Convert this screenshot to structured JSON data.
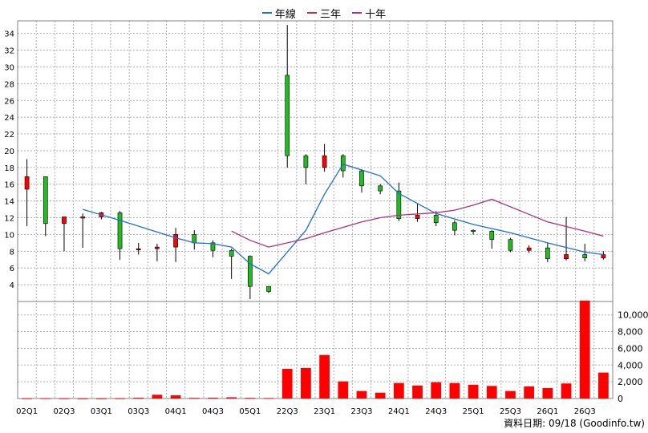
{
  "legend": [
    {
      "label": "年線",
      "color": "#1e6fd9"
    },
    {
      "label": "三年",
      "color": "#d12a2a"
    },
    {
      "label": "十年",
      "color": "#b0307a"
    }
  ],
  "footer": "資料日期: 09/18 (Goodinfo.tw)",
  "colors": {
    "up_body": "#ff0000",
    "down_body": "#22bb22",
    "wick": "#000000",
    "volume": "#ff0000",
    "grid": "#b0b0b0"
  },
  "chart_data": {
    "type": "candlestick+volume",
    "x_tick_labels": [
      "02Q1",
      "02Q3",
      "03Q1",
      "03Q3",
      "04Q1",
      "04Q3",
      "05Q1",
      "22Q3",
      "23Q1",
      "23Q3",
      "24Q1",
      "24Q3",
      "25Q1",
      "25Q3",
      "26Q1",
      "26Q3"
    ],
    "price_ylim": [
      2,
      35.5
    ],
    "price_ticks": [
      4,
      6,
      8,
      10,
      12,
      14,
      16,
      18,
      20,
      22,
      24,
      26,
      28,
      30,
      32,
      34
    ],
    "volume_ylim": [
      0,
      11600
    ],
    "volume_ticks": [
      "0",
      "2,000",
      "4,000",
      "6,000",
      "8,000",
      "10,000"
    ],
    "volume_tick_values": [
      0,
      2000,
      4000,
      6000,
      8000,
      10000
    ],
    "candles": [
      {
        "o": 15.4,
        "c": 16.9,
        "h": 19.0,
        "l": 11.0,
        "v": 30
      },
      {
        "o": 16.9,
        "c": 11.3,
        "h": 16.9,
        "l": 9.8,
        "v": 40
      },
      {
        "o": 11.3,
        "c": 12.1,
        "h": 12.1,
        "l": 8.0,
        "v": 30
      },
      {
        "o": 12.1,
        "c": 12.1,
        "h": 12.5,
        "l": 8.4,
        "v": 20
      },
      {
        "o": 12.1,
        "c": 12.6,
        "h": 12.7,
        "l": 11.8,
        "v": 20
      },
      {
        "o": 12.6,
        "c": 8.3,
        "h": 12.8,
        "l": 7.0,
        "v": 30
      },
      {
        "o": 8.3,
        "c": 8.3,
        "h": 9.0,
        "l": 7.6,
        "v": 100
      },
      {
        "o": 8.3,
        "c": 8.5,
        "h": 8.9,
        "l": 6.8,
        "v": 450
      },
      {
        "o": 8.5,
        "c": 10.0,
        "h": 10.8,
        "l": 6.7,
        "v": 380
      },
      {
        "o": 10.0,
        "c": 9.0,
        "h": 10.5,
        "l": 8.2,
        "v": 80
      },
      {
        "o": 9.0,
        "c": 8.1,
        "h": 9.3,
        "l": 7.3,
        "v": 100
      },
      {
        "o": 8.1,
        "c": 7.4,
        "h": 8.3,
        "l": 4.7,
        "v": 150
      },
      {
        "o": 7.4,
        "c": 3.8,
        "h": 7.5,
        "l": 2.3,
        "v": 80
      },
      {
        "o": 3.8,
        "c": 3.2,
        "h": 3.8,
        "l": 3.0,
        "v": 60
      },
      {
        "o": 29.0,
        "c": 19.4,
        "h": 35.0,
        "l": 18.0,
        "v": 3550
      },
      {
        "o": 19.4,
        "c": 18.0,
        "h": 19.6,
        "l": 16.0,
        "v": 3650
      },
      {
        "o": 18.0,
        "c": 19.4,
        "h": 20.8,
        "l": 17.5,
        "v": 5200
      },
      {
        "o": 19.4,
        "c": 17.6,
        "h": 19.6,
        "l": 16.8,
        "v": 2050
      },
      {
        "o": 17.6,
        "c": 15.8,
        "h": 17.8,
        "l": 15.0,
        "v": 900
      },
      {
        "o": 15.8,
        "c": 15.2,
        "h": 16.0,
        "l": 14.8,
        "v": 700
      },
      {
        "o": 15.2,
        "c": 11.9,
        "h": 16.2,
        "l": 11.6,
        "v": 1850
      },
      {
        "o": 11.9,
        "c": 12.3,
        "h": 13.7,
        "l": 11.5,
        "v": 1550
      },
      {
        "o": 12.3,
        "c": 11.4,
        "h": 12.8,
        "l": 11.0,
        "v": 1950
      },
      {
        "o": 11.4,
        "c": 10.5,
        "h": 11.7,
        "l": 9.9,
        "v": 1850
      },
      {
        "o": 10.5,
        "c": 10.4,
        "h": 10.6,
        "l": 10.0,
        "v": 1650
      },
      {
        "o": 10.4,
        "c": 9.4,
        "h": 10.5,
        "l": 8.3,
        "v": 1500
      },
      {
        "o": 9.4,
        "c": 8.1,
        "h": 9.6,
        "l": 7.9,
        "v": 900
      },
      {
        "o": 8.1,
        "c": 8.4,
        "h": 8.7,
        "l": 7.8,
        "v": 1450
      },
      {
        "o": 8.4,
        "c": 7.1,
        "h": 9.0,
        "l": 6.7,
        "v": 1250
      },
      {
        "o": 7.1,
        "c": 7.6,
        "h": 12.1,
        "l": 6.9,
        "v": 1800
      },
      {
        "o": 7.6,
        "c": 7.2,
        "h": 8.9,
        "l": 6.8,
        "v": 11700
      },
      {
        "o": 7.2,
        "c": 7.6,
        "h": 8.0,
        "l": 7.0,
        "v": 3100
      }
    ],
    "series": [
      {
        "name": "年線",
        "color": "#1e6fd9",
        "points": [
          [
            3,
            13.0
          ],
          [
            5,
            11.7
          ],
          [
            8,
            9.6
          ],
          [
            9,
            9.0
          ],
          [
            10,
            8.9
          ],
          [
            11,
            8.5
          ],
          [
            12,
            6.5
          ],
          [
            13,
            5.3
          ],
          [
            15,
            10.5
          ],
          [
            16,
            14.8
          ],
          [
            17,
            18.4
          ],
          [
            19,
            17.0
          ],
          [
            20,
            14.9
          ],
          [
            21,
            13.7
          ],
          [
            22,
            12.5
          ],
          [
            24,
            11.2
          ],
          [
            26,
            10.2
          ],
          [
            28,
            9.0
          ],
          [
            30,
            7.9
          ],
          [
            31,
            7.6
          ]
        ]
      },
      {
        "name": "三年",
        "color": "#d12a2a",
        "points": []
      },
      {
        "name": "十年",
        "color": "#b0307a",
        "points": [
          [
            11,
            10.4
          ],
          [
            12,
            9.3
          ],
          [
            13,
            8.5
          ],
          [
            15,
            9.5
          ],
          [
            16,
            10.2
          ],
          [
            18,
            11.5
          ],
          [
            19,
            12.0
          ],
          [
            20,
            12.3
          ],
          [
            22,
            12.6
          ],
          [
            23,
            12.9
          ],
          [
            24,
            13.5
          ],
          [
            25,
            14.2
          ],
          [
            26,
            13.3
          ],
          [
            27,
            12.4
          ],
          [
            28,
            11.5
          ],
          [
            30,
            10.4
          ],
          [
            31,
            9.8
          ]
        ]
      }
    ]
  }
}
